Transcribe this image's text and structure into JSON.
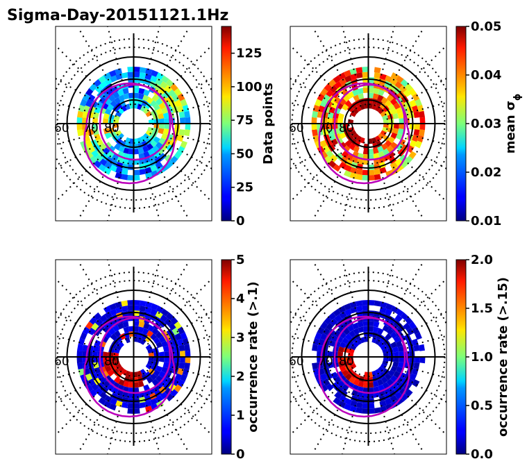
{
  "figure_title": "Sigma-Day-20151121.1Hz",
  "chart_data": [
    {
      "type": "heatmap",
      "projection": "polar",
      "colormap": "jet",
      "lat_labels": [
        "60",
        "70",
        "80"
      ],
      "colorbar": {
        "label": "Data points",
        "range": [
          0,
          145
        ],
        "ticks": [
          "0",
          "25",
          "50",
          "75",
          "100",
          "125"
        ]
      }
    },
    {
      "type": "heatmap",
      "projection": "polar",
      "colormap": "jet",
      "lat_labels": [
        "60",
        "70",
        "80"
      ],
      "colorbar": {
        "label": "mean σ",
        "label_subscript": "ϕ",
        "range": [
          0.01,
          0.05
        ],
        "ticks": [
          "0.01",
          "0.02",
          "0.03",
          "0.04",
          "0.05"
        ]
      }
    },
    {
      "type": "heatmap",
      "projection": "polar",
      "colormap": "jet",
      "lat_labels": [
        "60",
        "70",
        "80"
      ],
      "colorbar": {
        "label": "occurrence rate (>.1)",
        "range": [
          0,
          5
        ],
        "ticks": [
          "0",
          "1",
          "2",
          "3",
          "4",
          "5"
        ]
      }
    },
    {
      "type": "heatmap",
      "projection": "polar",
      "colormap": "jet",
      "lat_labels": [
        "60",
        "70",
        "80"
      ],
      "colorbar": {
        "label": "occurrence rate (>.15)",
        "range": [
          0,
          2
        ],
        "ticks": [
          "0.0",
          "0.5",
          "1.0",
          "1.5",
          "2.0"
        ]
      }
    }
  ]
}
